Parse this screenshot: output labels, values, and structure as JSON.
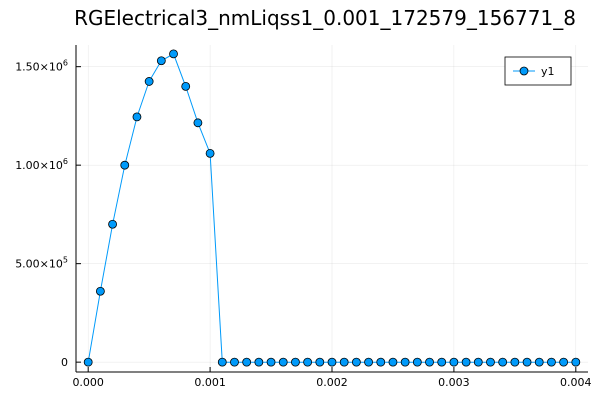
{
  "chart_data": {
    "type": "line",
    "title": "RGElectrical3_nmLiqss1_0.001_172579_156771_8",
    "xlabel": "",
    "ylabel": "",
    "xlim": [
      -0.0001,
      0.0041
    ],
    "ylim": [
      -50000,
      1610000
    ],
    "grid": true,
    "legend_position": "top-right",
    "x_ticks": [
      {
        "value": 0.0,
        "label": "0.000"
      },
      {
        "value": 0.001,
        "label": "0.001"
      },
      {
        "value": 0.002,
        "label": "0.002"
      },
      {
        "value": 0.003,
        "label": "0.003"
      },
      {
        "value": 0.004,
        "label": "0.004"
      }
    ],
    "y_ticks": [
      {
        "value": 0,
        "label": "0",
        "exp": ""
      },
      {
        "value": 500000,
        "label": "5.00×10",
        "exp": "5"
      },
      {
        "value": 1000000,
        "label": "1.00×10",
        "exp": "6"
      },
      {
        "value": 1500000,
        "label": "1.50×10",
        "exp": "6"
      }
    ],
    "series": [
      {
        "name": "y1",
        "color": "#009AFA",
        "marker": "circle",
        "x": [
          0.0,
          0.0001,
          0.0002,
          0.0003,
          0.0004,
          0.0005,
          0.0006,
          0.0007,
          0.0008,
          0.0009,
          0.001,
          0.0011,
          0.0012,
          0.0013,
          0.0014,
          0.0015,
          0.0016,
          0.0017,
          0.0018,
          0.0019,
          0.002,
          0.0021,
          0.0022,
          0.0023,
          0.0024,
          0.0025,
          0.0026,
          0.0027,
          0.0028,
          0.0029,
          0.003,
          0.0031,
          0.0032,
          0.0033,
          0.0034,
          0.0035,
          0.0036,
          0.0037,
          0.0038,
          0.0039,
          0.004
        ],
        "y": [
          0,
          360000,
          700000,
          1000000,
          1245000,
          1425000,
          1530000,
          1565000,
          1400000,
          1215000,
          1060000,
          0,
          0,
          0,
          0,
          0,
          0,
          0,
          0,
          0,
          0,
          0,
          0,
          0,
          0,
          0,
          0,
          0,
          0,
          0,
          0,
          0,
          0,
          0,
          0,
          0,
          0,
          0,
          0,
          0,
          0
        ]
      }
    ]
  }
}
